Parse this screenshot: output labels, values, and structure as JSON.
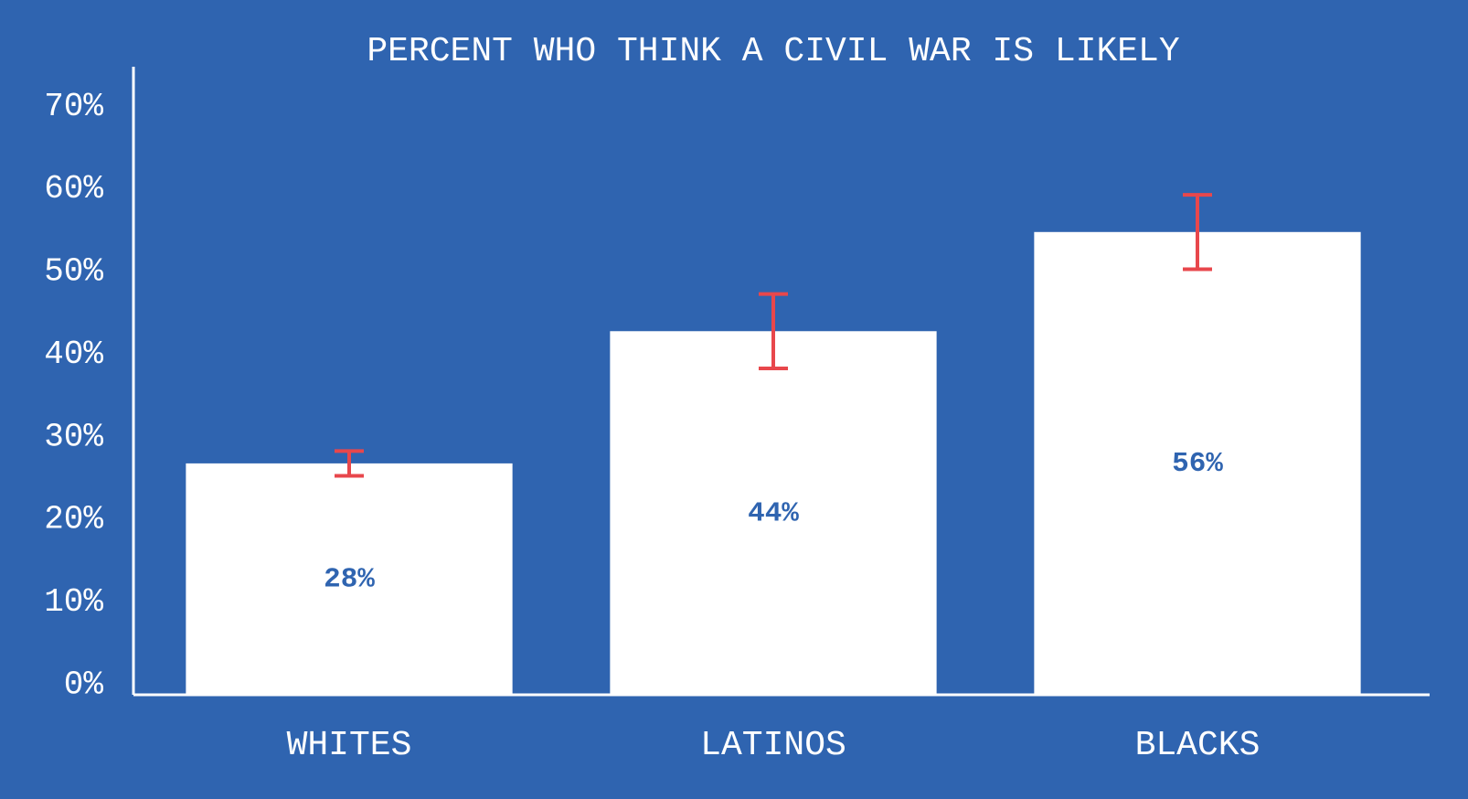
{
  "chart_data": {
    "type": "bar",
    "title": "PERCENT WHO THINK A CIVIL WAR IS LIKELY",
    "categories": [
      "WHITES",
      "LATINOS",
      "BLACKS"
    ],
    "values": [
      28,
      44,
      56
    ],
    "value_labels": [
      "28%",
      "44%",
      "56%"
    ],
    "errors": [
      1.5,
      4.5,
      4.5
    ],
    "color": "#ffffff",
    "error_color": "#e8474c",
    "label_color": "#2f64b0",
    "ylim": [
      0,
      76
    ],
    "yticks": [
      {
        "value": 0,
        "label": "0%"
      },
      {
        "value": 10,
        "label": "10%"
      },
      {
        "value": 20,
        "label": "20%"
      },
      {
        "value": 30,
        "label": "30%"
      },
      {
        "value": 40,
        "label": "40%"
      },
      {
        "value": 50,
        "label": "50%"
      },
      {
        "value": 60,
        "label": "60%"
      },
      {
        "value": 70,
        "label": "70%"
      }
    ],
    "grid": false
  }
}
